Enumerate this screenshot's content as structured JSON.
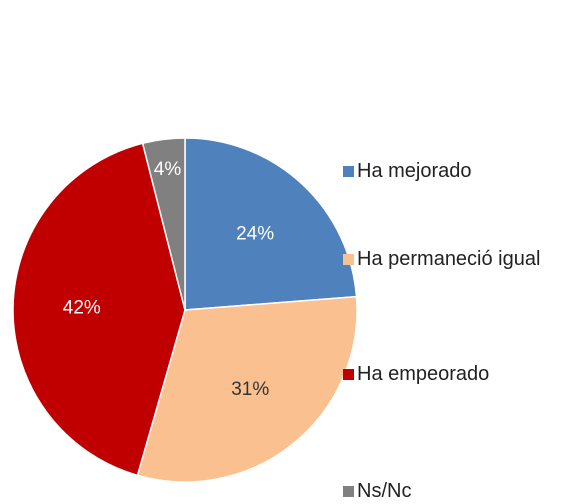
{
  "chart_data": {
    "type": "pie",
    "categories": [
      "Ha mejorado",
      "Ha permaneció igual",
      "Ha empeorado",
      "Ns/Nc"
    ],
    "values": [
      24,
      31,
      42,
      4
    ],
    "value_labels": [
      "24%",
      "31%",
      "42%",
      "4%"
    ],
    "colors": [
      "#4f81bd",
      "#fac090",
      "#c00000",
      "#808080"
    ],
    "legend": "right"
  }
}
